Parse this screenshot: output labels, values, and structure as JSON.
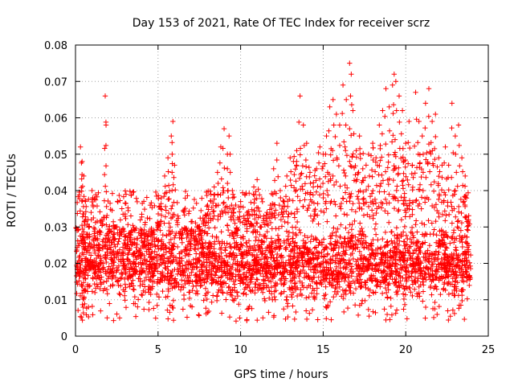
{
  "chart_data": {
    "type": "scatter",
    "title": "Day 153 of 2021, Rate Of TEC Index for receiver scrz",
    "xlabel": "GPS time / hours",
    "ylabel": "ROTI / TECUs",
    "xlim": [
      0,
      25
    ],
    "ylim": [
      0,
      0.08
    ],
    "xticks": [
      0,
      5,
      10,
      15,
      20,
      25
    ],
    "xtick_labels": [
      "0",
      "5",
      "10",
      "15",
      "20",
      "25"
    ],
    "yticks": [
      0,
      0.01,
      0.02,
      0.03,
      0.04,
      0.05,
      0.06,
      0.07,
      0.08
    ],
    "ytick_labels": [
      "0",
      "0.01",
      "0.02",
      "0.03",
      "0.04",
      "0.05",
      "0.06",
      "0.07",
      "0.08"
    ],
    "grid": true,
    "marker": "+",
    "color": "#ff0000",
    "series": [
      {
        "name": "ROTI",
        "x": [
          0.1,
          0.3,
          0.4,
          0.5,
          0.6,
          0.8,
          1.0,
          1.2,
          1.4,
          1.6,
          1.8,
          1.85,
          2.0,
          2.2,
          2.4,
          2.6,
          2.8,
          3.0,
          3.2,
          3.4,
          3.6,
          3.8,
          4.0,
          4.2,
          4.4,
          4.6,
          4.8,
          5.0,
          5.2,
          5.4,
          5.6,
          5.8,
          5.9,
          6.0,
          6.2,
          6.4,
          6.6,
          6.8,
          7.0,
          7.2,
          7.4,
          7.6,
          7.8,
          8.0,
          8.2,
          8.4,
          8.6,
          8.8,
          9.0,
          9.2,
          9.3,
          9.5,
          9.6,
          9.8,
          10.0,
          10.2,
          10.4,
          10.6,
          10.8,
          11.0,
          11.2,
          11.4,
          11.6,
          11.8,
          12.0,
          12.2,
          12.4,
          12.6,
          12.8,
          13.0,
          13.2,
          13.4,
          13.6,
          13.8,
          14.0,
          14.2,
          14.4,
          14.6,
          14.8,
          15.0,
          15.2,
          15.4,
          15.6,
          15.8,
          16.0,
          16.2,
          16.4,
          16.6,
          16.7,
          16.8,
          17.0,
          17.2,
          17.4,
          17.6,
          17.8,
          18.0,
          18.2,
          18.4,
          18.6,
          18.8,
          19.0,
          19.2,
          19.3,
          19.4,
          19.6,
          19.8,
          20.0,
          20.2,
          20.4,
          20.6,
          20.8,
          21.0,
          21.2,
          21.4,
          21.6,
          21.8,
          22.0,
          22.2,
          22.4,
          22.6,
          22.8,
          23.0,
          23.2,
          23.4,
          23.6,
          23.8
        ],
        "y": [
          0.029,
          0.052,
          0.048,
          0.044,
          0.037,
          0.03,
          0.04,
          0.027,
          0.022,
          0.032,
          0.066,
          0.058,
          0.027,
          0.023,
          0.03,
          0.026,
          0.028,
          0.024,
          0.021,
          0.025,
          0.029,
          0.022,
          0.027,
          0.026,
          0.024,
          0.028,
          0.025,
          0.031,
          0.038,
          0.044,
          0.049,
          0.055,
          0.059,
          0.047,
          0.033,
          0.027,
          0.029,
          0.025,
          0.027,
          0.024,
          0.03,
          0.027,
          0.032,
          0.036,
          0.039,
          0.041,
          0.045,
          0.052,
          0.057,
          0.05,
          0.055,
          0.04,
          0.035,
          0.029,
          0.037,
          0.033,
          0.034,
          0.031,
          0.041,
          0.043,
          0.03,
          0.033,
          0.034,
          0.036,
          0.046,
          0.053,
          0.04,
          0.037,
          0.044,
          0.049,
          0.048,
          0.051,
          0.066,
          0.058,
          0.053,
          0.045,
          0.041,
          0.046,
          0.052,
          0.05,
          0.055,
          0.063,
          0.065,
          0.061,
          0.058,
          0.069,
          0.065,
          0.075,
          0.072,
          0.062,
          0.051,
          0.055,
          0.046,
          0.047,
          0.044,
          0.053,
          0.049,
          0.058,
          0.062,
          0.068,
          0.063,
          0.069,
          0.072,
          0.07,
          0.066,
          0.062,
          0.053,
          0.059,
          0.047,
          0.067,
          0.059,
          0.055,
          0.064,
          0.068,
          0.059,
          0.061,
          0.049,
          0.047,
          0.052,
          0.047,
          0.064,
          0.055,
          0.058,
          0.049,
          0.044,
          0.032
        ]
      }
    ],
    "band": {
      "description_values": "dense background cloud of points between roughly 0.007 and 0.030 ROTI across 0-24 h",
      "low": 0.007,
      "high": 0.03
    }
  }
}
